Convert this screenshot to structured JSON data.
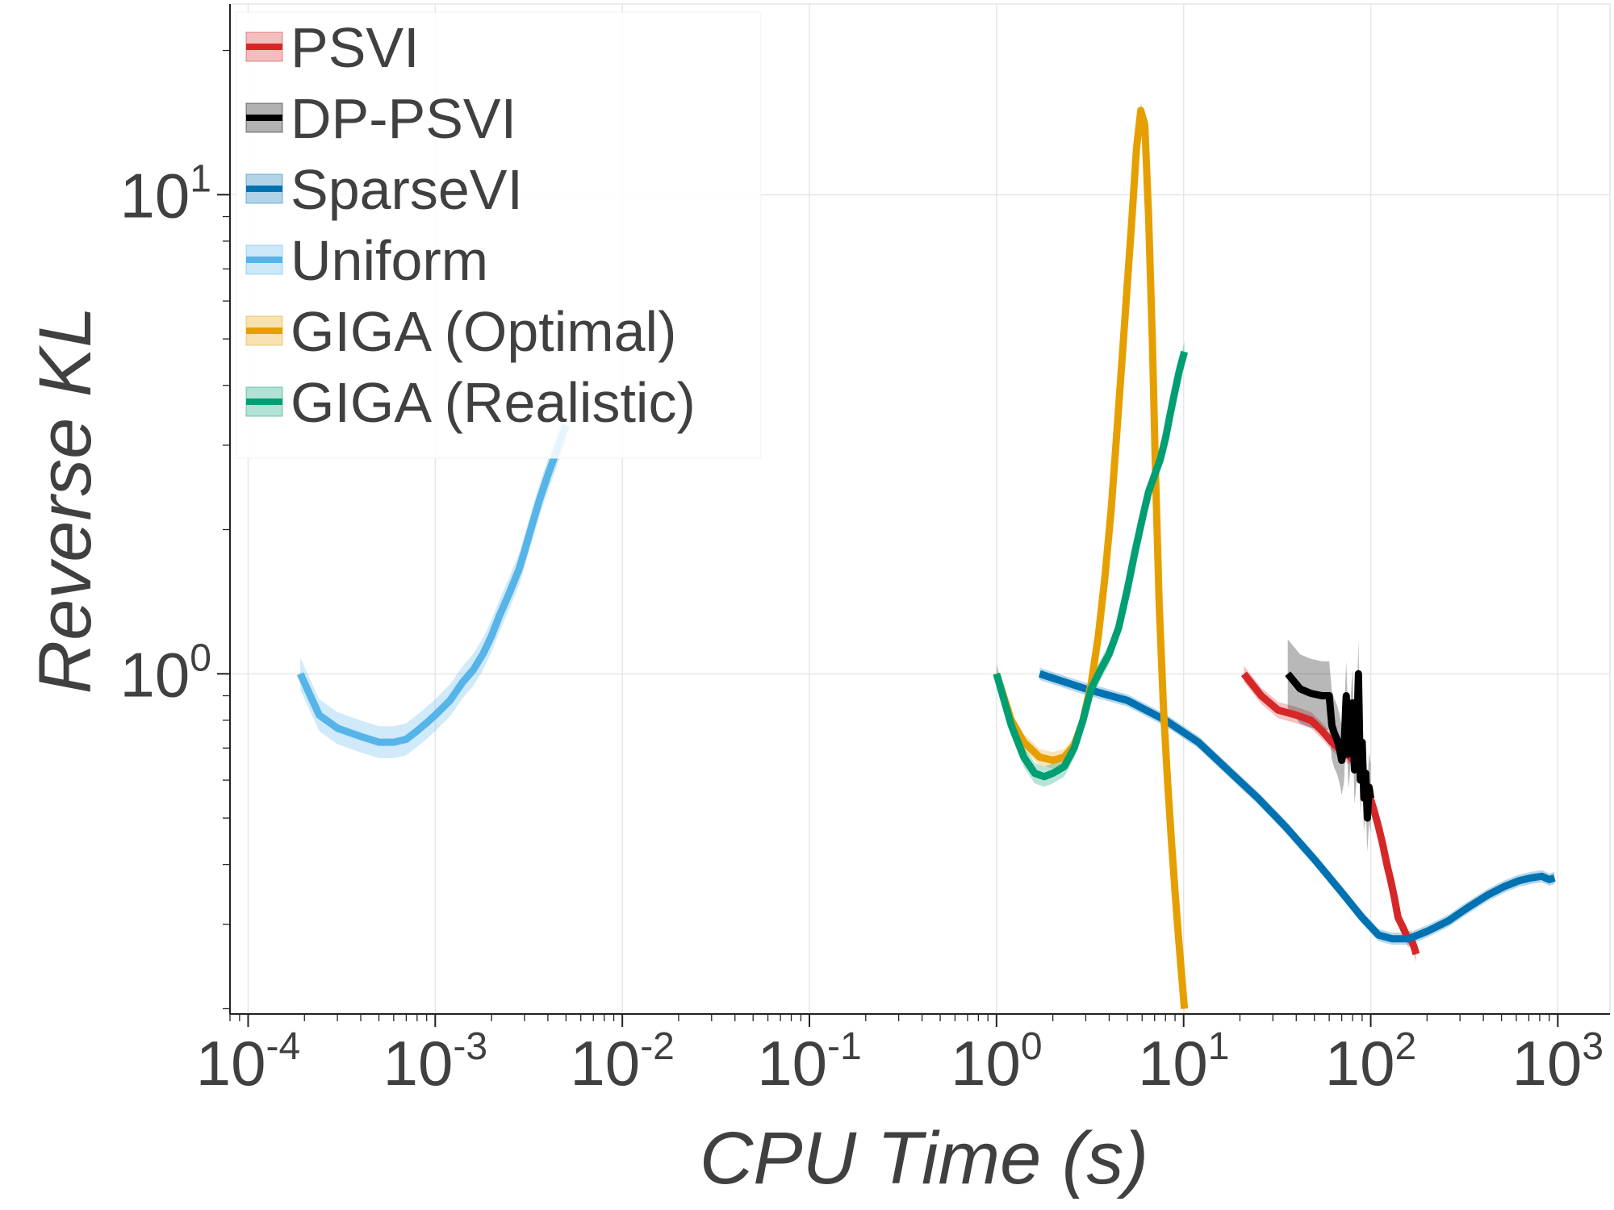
{
  "chart_data": {
    "type": "line",
    "title": "",
    "xlabel": "CPU Time (s)",
    "ylabel": "Reverse KL",
    "xscale": "log",
    "yscale": "log",
    "xlim": [
      8e-05,
      1900
    ],
    "ylim": [
      0.195,
      25
    ],
    "xticks": [
      {
        "value": 0.0001,
        "base": "10",
        "exp": "-4"
      },
      {
        "value": 0.001,
        "base": "10",
        "exp": "-3"
      },
      {
        "value": 0.01,
        "base": "10",
        "exp": "-2"
      },
      {
        "value": 0.1,
        "base": "10",
        "exp": "-1"
      },
      {
        "value": 1,
        "base": "10",
        "exp": "0"
      },
      {
        "value": 10,
        "base": "10",
        "exp": "1"
      },
      {
        "value": 100,
        "base": "10",
        "exp": "2"
      },
      {
        "value": 1000,
        "base": "10",
        "exp": "3"
      }
    ],
    "yticks": [
      {
        "value": 1,
        "base": "10",
        "exp": "0"
      },
      {
        "value": 10,
        "base": "10",
        "exp": "1"
      }
    ],
    "grid": true,
    "legend_position": "top-left",
    "series": [
      {
        "name": "PSVI",
        "color": "#d62728",
        "band": 0.04,
        "points": [
          [
            21,
            1.0
          ],
          [
            26,
            0.9
          ],
          [
            32,
            0.84
          ],
          [
            40,
            0.82
          ],
          [
            48,
            0.8
          ],
          [
            55,
            0.76
          ],
          [
            62,
            0.72
          ],
          [
            70,
            0.69
          ],
          [
            78,
            0.67
          ],
          [
            86,
            0.64
          ],
          [
            92,
            0.6
          ],
          [
            98,
            0.56
          ],
          [
            104,
            0.52
          ],
          [
            110,
            0.48
          ],
          [
            116,
            0.44
          ],
          [
            122,
            0.4
          ],
          [
            128,
            0.37
          ],
          [
            134,
            0.34
          ],
          [
            140,
            0.31
          ],
          [
            146,
            0.3
          ],
          [
            152,
            0.29
          ],
          [
            158,
            0.28
          ],
          [
            164,
            0.28
          ],
          [
            170,
            0.27
          ],
          [
            175,
            0.26
          ]
        ]
      },
      {
        "name": "DP-PSVI",
        "color": "#000000",
        "band": 0.18,
        "points": [
          [
            36,
            1.0
          ],
          [
            42,
            0.93
          ],
          [
            48,
            0.91
          ],
          [
            55,
            0.9
          ],
          [
            60,
            0.9
          ],
          [
            62,
            0.78
          ],
          [
            64,
            0.75
          ],
          [
            66,
            0.73
          ],
          [
            68,
            0.7
          ],
          [
            70,
            0.66
          ],
          [
            72,
            0.7
          ],
          [
            74,
            0.9
          ],
          [
            76,
            0.68
          ],
          [
            78,
            0.75
          ],
          [
            80,
            0.87
          ],
          [
            82,
            0.63
          ],
          [
            84,
            0.7
          ],
          [
            86,
            1.0
          ],
          [
            88,
            0.6
          ],
          [
            90,
            0.72
          ],
          [
            92,
            0.55
          ],
          [
            94,
            0.62
          ],
          [
            96,
            0.5
          ],
          [
            98,
            0.58
          ],
          [
            100,
            0.55
          ]
        ]
      },
      {
        "name": "SparseVI",
        "color": "#0072b2",
        "band": 0.03,
        "points": [
          [
            1.7,
            1.0
          ],
          [
            3.0,
            0.93
          ],
          [
            5.0,
            0.88
          ],
          [
            8.0,
            0.8
          ],
          [
            12,
            0.72
          ],
          [
            18,
            0.62
          ],
          [
            25,
            0.55
          ],
          [
            35,
            0.48
          ],
          [
            50,
            0.41
          ],
          [
            70,
            0.35
          ],
          [
            90,
            0.31
          ],
          [
            110,
            0.285
          ],
          [
            130,
            0.28
          ],
          [
            160,
            0.28
          ],
          [
            200,
            0.29
          ],
          [
            260,
            0.305
          ],
          [
            330,
            0.325
          ],
          [
            420,
            0.345
          ],
          [
            520,
            0.36
          ],
          [
            620,
            0.37
          ],
          [
            720,
            0.375
          ],
          [
            820,
            0.378
          ],
          [
            900,
            0.372
          ],
          [
            960,
            0.375
          ]
        ]
      },
      {
        "name": "Uniform",
        "color": "#56b4e9",
        "band": 0.08,
        "points": [
          [
            0.00019,
            1.0
          ],
          [
            0.00024,
            0.82
          ],
          [
            0.0003,
            0.77
          ],
          [
            0.0004,
            0.74
          ],
          [
            0.0005,
            0.72
          ],
          [
            0.0006,
            0.72
          ],
          [
            0.0007,
            0.73
          ],
          [
            0.0008,
            0.76
          ],
          [
            0.0009,
            0.79
          ],
          [
            0.001,
            0.82
          ],
          [
            0.0012,
            0.88
          ],
          [
            0.0014,
            0.96
          ],
          [
            0.0016,
            1.02
          ],
          [
            0.0018,
            1.1
          ],
          [
            0.002,
            1.2
          ],
          [
            0.0022,
            1.32
          ],
          [
            0.0025,
            1.48
          ],
          [
            0.0028,
            1.65
          ],
          [
            0.003,
            1.8
          ],
          [
            0.0033,
            2.05
          ],
          [
            0.0036,
            2.3
          ],
          [
            0.004,
            2.6
          ],
          [
            0.0045,
            2.95
          ],
          [
            0.005,
            3.3
          ]
        ]
      },
      {
        "name": "GIGA (Optimal)",
        "color": "#e69f00",
        "band": 0.04,
        "points": [
          [
            1.0,
            1.0
          ],
          [
            1.2,
            0.8
          ],
          [
            1.4,
            0.72
          ],
          [
            1.7,
            0.67
          ],
          [
            2.0,
            0.66
          ],
          [
            2.3,
            0.67
          ],
          [
            2.6,
            0.71
          ],
          [
            2.9,
            0.8
          ],
          [
            3.2,
            0.95
          ],
          [
            3.5,
            1.2
          ],
          [
            3.8,
            1.6
          ],
          [
            4.1,
            2.2
          ],
          [
            4.4,
            3.2
          ],
          [
            4.7,
            4.6
          ],
          [
            5.0,
            6.5
          ],
          [
            5.3,
            9.0
          ],
          [
            5.6,
            12.5
          ],
          [
            5.9,
            15.0
          ],
          [
            6.2,
            14.0
          ],
          [
            6.5,
            9.0
          ],
          [
            6.8,
            5.0
          ],
          [
            7.1,
            2.5
          ],
          [
            7.4,
            1.4
          ],
          [
            7.8,
            0.85
          ],
          [
            8.2,
            0.6
          ],
          [
            8.6,
            0.45
          ],
          [
            9.0,
            0.35
          ],
          [
            9.4,
            0.28
          ],
          [
            9.8,
            0.23
          ],
          [
            10.1,
            0.2
          ]
        ]
      },
      {
        "name": "GIGA (Realistic)",
        "color": "#009e73",
        "band": 0.05,
        "points": [
          [
            1.0,
            1.0
          ],
          [
            1.2,
            0.78
          ],
          [
            1.4,
            0.67
          ],
          [
            1.6,
            0.62
          ],
          [
            1.8,
            0.61
          ],
          [
            2.0,
            0.62
          ],
          [
            2.3,
            0.64
          ],
          [
            2.6,
            0.7
          ],
          [
            2.9,
            0.8
          ],
          [
            3.2,
            0.93
          ],
          [
            3.6,
            1.02
          ],
          [
            4.0,
            1.1
          ],
          [
            4.5,
            1.25
          ],
          [
            5.0,
            1.5
          ],
          [
            5.5,
            1.8
          ],
          [
            6.0,
            2.1
          ],
          [
            6.5,
            2.4
          ],
          [
            7.0,
            2.6
          ],
          [
            7.5,
            2.8
          ],
          [
            8.0,
            3.1
          ],
          [
            8.5,
            3.5
          ],
          [
            9.0,
            3.9
          ],
          [
            9.5,
            4.3
          ],
          [
            10.1,
            4.7
          ]
        ]
      }
    ]
  }
}
